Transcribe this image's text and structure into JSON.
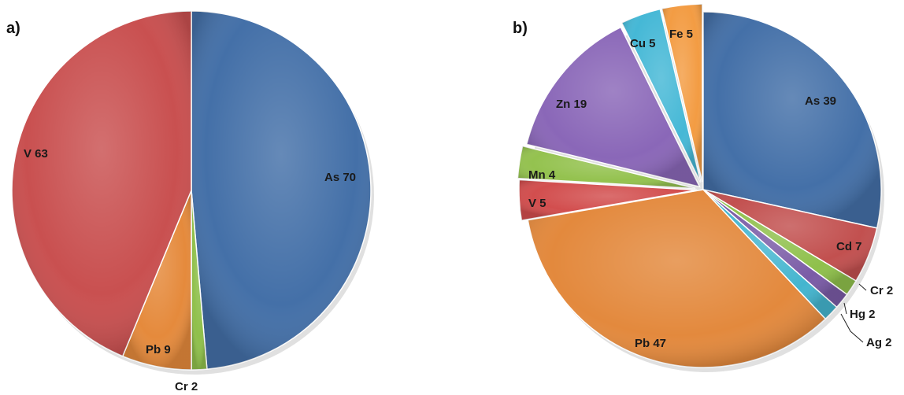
{
  "chart_data": [
    {
      "type": "pie",
      "panel_label": "a)",
      "slices": [
        {
          "label": "As",
          "value": 70,
          "color": "#4470a8"
        },
        {
          "label": "Cr",
          "value": 2,
          "color": "#8fc04b"
        },
        {
          "label": "Pb",
          "value": 9,
          "color": "#e58a3c"
        },
        {
          "label": "V",
          "value": 63,
          "color": "#c95050"
        }
      ]
    },
    {
      "type": "pie",
      "panel_label": "b)",
      "slices": [
        {
          "label": "As",
          "value": 39,
          "color": "#4470a8"
        },
        {
          "label": "Cd",
          "value": 7,
          "color": "#c2504f"
        },
        {
          "label": "Cr",
          "value": 2,
          "color": "#8fc04b"
        },
        {
          "label": "Hg",
          "value": 2,
          "color": "#7a5ba6"
        },
        {
          "label": "Ag",
          "value": 2,
          "color": "#44b5cf"
        },
        {
          "label": "Pb",
          "value": 47,
          "color": "#e3893d"
        },
        {
          "label": "V",
          "value": 5,
          "color": "#d24e4e"
        },
        {
          "label": "Mn",
          "value": 4,
          "color": "#94c24f"
        },
        {
          "label": "Zn",
          "value": 19,
          "color": "#8a67b8"
        },
        {
          "label": "Cu",
          "value": 5,
          "color": "#45b8d6"
        },
        {
          "label": "Fe",
          "value": 5,
          "color": "#f39c43"
        }
      ]
    }
  ]
}
